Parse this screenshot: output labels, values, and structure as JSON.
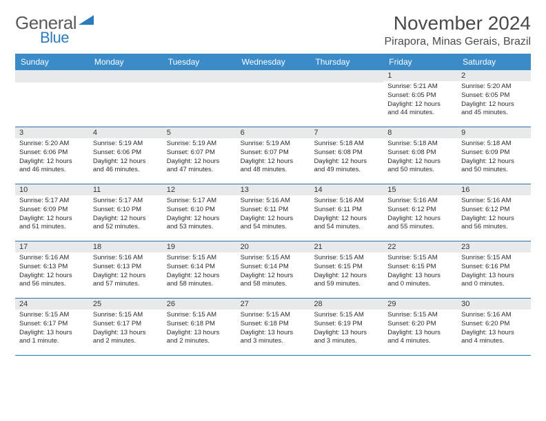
{
  "logo": {
    "text1": "General",
    "text2": "Blue"
  },
  "title": "November 2024",
  "location": "Pirapora, Minas Gerais, Brazil",
  "colors": {
    "header_bg": "#3b8bc9",
    "header_text": "#ffffff",
    "week_border": "#2b6fa8",
    "daynum_bg": "#e8e9ea",
    "body_text": "#2a2a2a",
    "logo_gray": "#5a5a5a",
    "logo_blue": "#2b7bbf"
  },
  "weekdays": [
    "Sunday",
    "Monday",
    "Tuesday",
    "Wednesday",
    "Thursday",
    "Friday",
    "Saturday"
  ],
  "weeks": [
    [
      {
        "n": "",
        "sr": "",
        "ss": "",
        "dl": ""
      },
      {
        "n": "",
        "sr": "",
        "ss": "",
        "dl": ""
      },
      {
        "n": "",
        "sr": "",
        "ss": "",
        "dl": ""
      },
      {
        "n": "",
        "sr": "",
        "ss": "",
        "dl": ""
      },
      {
        "n": "",
        "sr": "",
        "ss": "",
        "dl": ""
      },
      {
        "n": "1",
        "sr": "Sunrise: 5:21 AM",
        "ss": "Sunset: 6:05 PM",
        "dl": "Daylight: 12 hours and 44 minutes."
      },
      {
        "n": "2",
        "sr": "Sunrise: 5:20 AM",
        "ss": "Sunset: 6:05 PM",
        "dl": "Daylight: 12 hours and 45 minutes."
      }
    ],
    [
      {
        "n": "3",
        "sr": "Sunrise: 5:20 AM",
        "ss": "Sunset: 6:06 PM",
        "dl": "Daylight: 12 hours and 46 minutes."
      },
      {
        "n": "4",
        "sr": "Sunrise: 5:19 AM",
        "ss": "Sunset: 6:06 PM",
        "dl": "Daylight: 12 hours and 46 minutes."
      },
      {
        "n": "5",
        "sr": "Sunrise: 5:19 AM",
        "ss": "Sunset: 6:07 PM",
        "dl": "Daylight: 12 hours and 47 minutes."
      },
      {
        "n": "6",
        "sr": "Sunrise: 5:19 AM",
        "ss": "Sunset: 6:07 PM",
        "dl": "Daylight: 12 hours and 48 minutes."
      },
      {
        "n": "7",
        "sr": "Sunrise: 5:18 AM",
        "ss": "Sunset: 6:08 PM",
        "dl": "Daylight: 12 hours and 49 minutes."
      },
      {
        "n": "8",
        "sr": "Sunrise: 5:18 AM",
        "ss": "Sunset: 6:08 PM",
        "dl": "Daylight: 12 hours and 50 minutes."
      },
      {
        "n": "9",
        "sr": "Sunrise: 5:18 AM",
        "ss": "Sunset: 6:09 PM",
        "dl": "Daylight: 12 hours and 50 minutes."
      }
    ],
    [
      {
        "n": "10",
        "sr": "Sunrise: 5:17 AM",
        "ss": "Sunset: 6:09 PM",
        "dl": "Daylight: 12 hours and 51 minutes."
      },
      {
        "n": "11",
        "sr": "Sunrise: 5:17 AM",
        "ss": "Sunset: 6:10 PM",
        "dl": "Daylight: 12 hours and 52 minutes."
      },
      {
        "n": "12",
        "sr": "Sunrise: 5:17 AM",
        "ss": "Sunset: 6:10 PM",
        "dl": "Daylight: 12 hours and 53 minutes."
      },
      {
        "n": "13",
        "sr": "Sunrise: 5:16 AM",
        "ss": "Sunset: 6:11 PM",
        "dl": "Daylight: 12 hours and 54 minutes."
      },
      {
        "n": "14",
        "sr": "Sunrise: 5:16 AM",
        "ss": "Sunset: 6:11 PM",
        "dl": "Daylight: 12 hours and 54 minutes."
      },
      {
        "n": "15",
        "sr": "Sunrise: 5:16 AM",
        "ss": "Sunset: 6:12 PM",
        "dl": "Daylight: 12 hours and 55 minutes."
      },
      {
        "n": "16",
        "sr": "Sunrise: 5:16 AM",
        "ss": "Sunset: 6:12 PM",
        "dl": "Daylight: 12 hours and 56 minutes."
      }
    ],
    [
      {
        "n": "17",
        "sr": "Sunrise: 5:16 AM",
        "ss": "Sunset: 6:13 PM",
        "dl": "Daylight: 12 hours and 56 minutes."
      },
      {
        "n": "18",
        "sr": "Sunrise: 5:16 AM",
        "ss": "Sunset: 6:13 PM",
        "dl": "Daylight: 12 hours and 57 minutes."
      },
      {
        "n": "19",
        "sr": "Sunrise: 5:15 AM",
        "ss": "Sunset: 6:14 PM",
        "dl": "Daylight: 12 hours and 58 minutes."
      },
      {
        "n": "20",
        "sr": "Sunrise: 5:15 AM",
        "ss": "Sunset: 6:14 PM",
        "dl": "Daylight: 12 hours and 58 minutes."
      },
      {
        "n": "21",
        "sr": "Sunrise: 5:15 AM",
        "ss": "Sunset: 6:15 PM",
        "dl": "Daylight: 12 hours and 59 minutes."
      },
      {
        "n": "22",
        "sr": "Sunrise: 5:15 AM",
        "ss": "Sunset: 6:15 PM",
        "dl": "Daylight: 13 hours and 0 minutes."
      },
      {
        "n": "23",
        "sr": "Sunrise: 5:15 AM",
        "ss": "Sunset: 6:16 PM",
        "dl": "Daylight: 13 hours and 0 minutes."
      }
    ],
    [
      {
        "n": "24",
        "sr": "Sunrise: 5:15 AM",
        "ss": "Sunset: 6:17 PM",
        "dl": "Daylight: 13 hours and 1 minute."
      },
      {
        "n": "25",
        "sr": "Sunrise: 5:15 AM",
        "ss": "Sunset: 6:17 PM",
        "dl": "Daylight: 13 hours and 2 minutes."
      },
      {
        "n": "26",
        "sr": "Sunrise: 5:15 AM",
        "ss": "Sunset: 6:18 PM",
        "dl": "Daylight: 13 hours and 2 minutes."
      },
      {
        "n": "27",
        "sr": "Sunrise: 5:15 AM",
        "ss": "Sunset: 6:18 PM",
        "dl": "Daylight: 13 hours and 3 minutes."
      },
      {
        "n": "28",
        "sr": "Sunrise: 5:15 AM",
        "ss": "Sunset: 6:19 PM",
        "dl": "Daylight: 13 hours and 3 minutes."
      },
      {
        "n": "29",
        "sr": "Sunrise: 5:15 AM",
        "ss": "Sunset: 6:20 PM",
        "dl": "Daylight: 13 hours and 4 minutes."
      },
      {
        "n": "30",
        "sr": "Sunrise: 5:16 AM",
        "ss": "Sunset: 6:20 PM",
        "dl": "Daylight: 13 hours and 4 minutes."
      }
    ]
  ]
}
